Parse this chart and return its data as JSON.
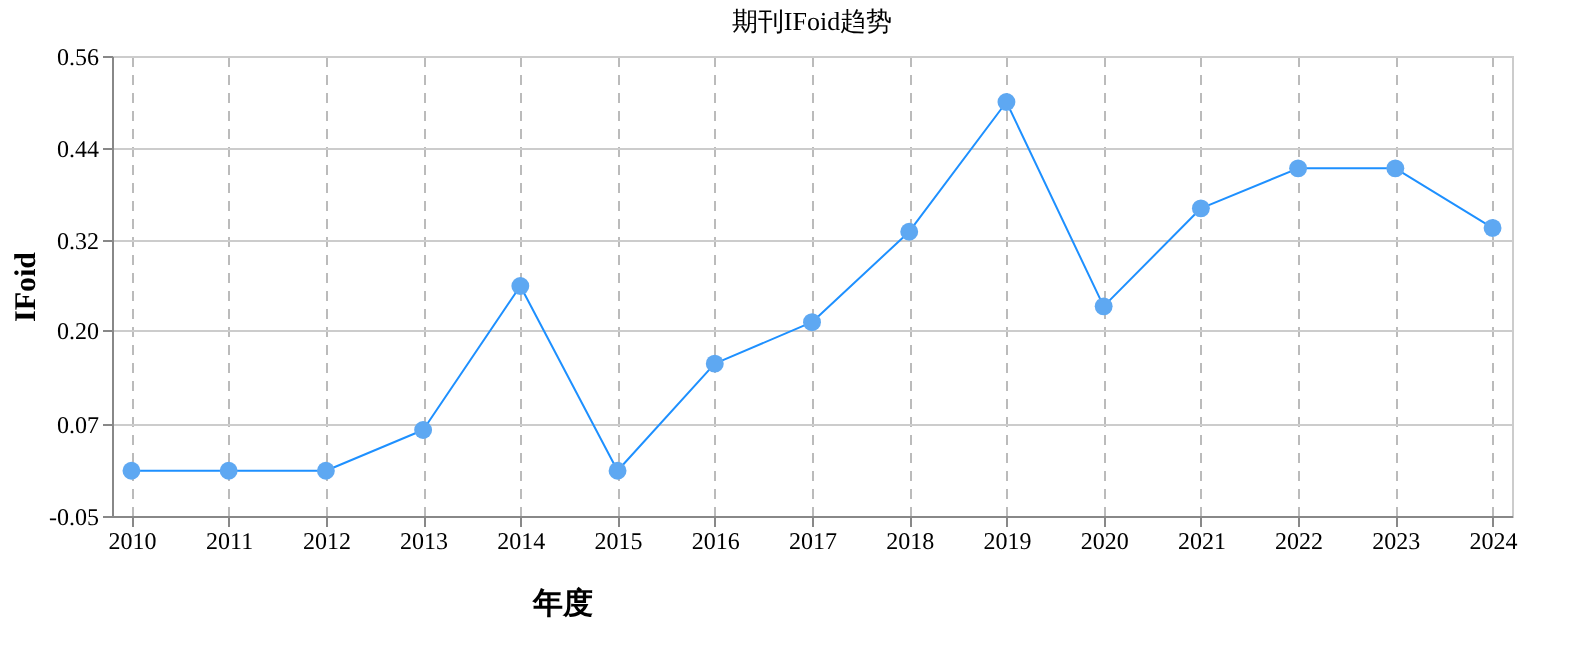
{
  "chart_data": {
    "type": "line",
    "title": "期刊IFoid趋势",
    "xlabel": "年度",
    "ylabel": "IFoid",
    "categories": [
      "2010",
      "2011",
      "2012",
      "2013",
      "2014",
      "2015",
      "2016",
      "2017",
      "2018",
      "2019",
      "2020",
      "2021",
      "2022",
      "2023",
      "2024"
    ],
    "series": [
      {
        "color": "#1e90ff",
        "values": [
          0.01,
          0.01,
          0.01,
          0.064,
          0.255,
          0.01,
          0.152,
          0.207,
          0.327,
          0.499,
          0.228,
          0.358,
          0.411,
          0.411,
          0.332
        ]
      }
    ],
    "ylim": [
      -0.05,
      0.56
    ],
    "yticks": [
      -0.05,
      {
        "value": 0.072,
        "label": "0.07"
      },
      {
        "value": 0.196,
        "label": "0.20"
      },
      {
        "value": 0.316,
        "label": "0.32"
      },
      {
        "value": 0.438,
        "label": "0.44"
      },
      0.56
    ],
    "grid": true,
    "marker": "circle",
    "line_style": "solid"
  }
}
